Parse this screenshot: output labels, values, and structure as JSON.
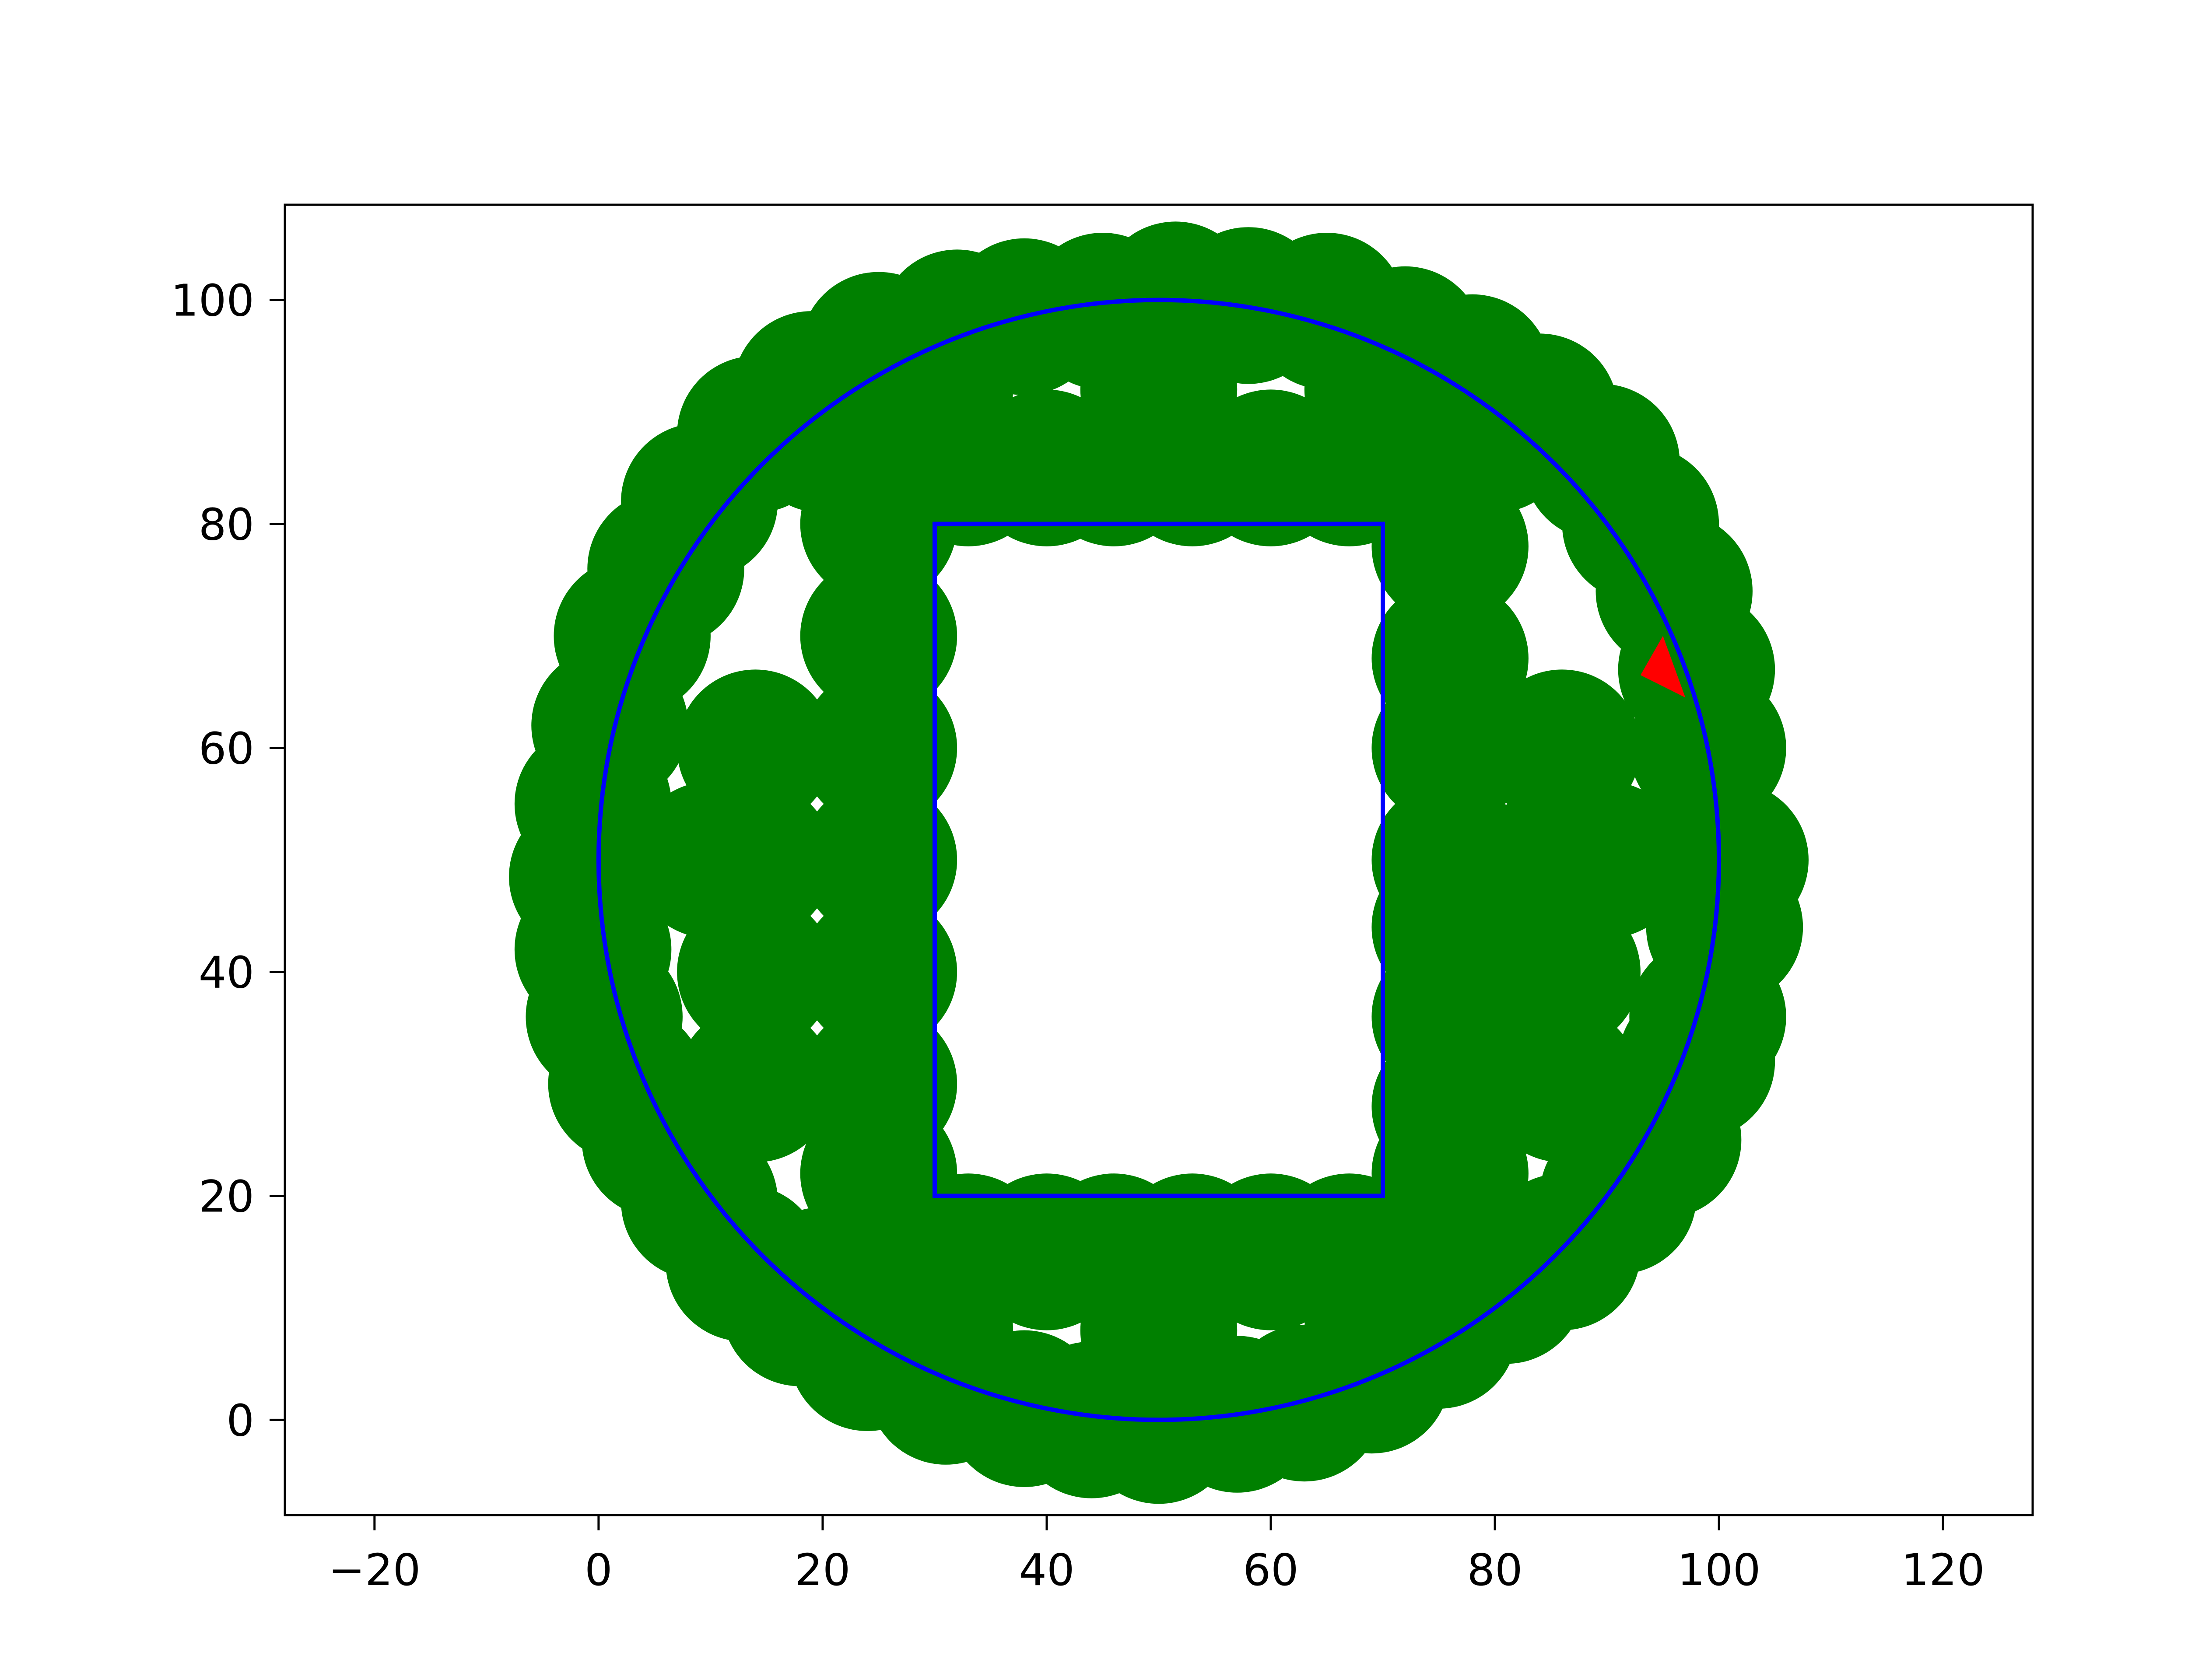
{
  "chart_data": {
    "type": "scatter",
    "title": "",
    "xlabel": "",
    "ylabel": "",
    "xlim": [
      -28,
      128
    ],
    "ylim": [
      -8.5,
      108.5
    ],
    "xticks": [
      -20,
      0,
      20,
      40,
      60,
      80,
      100,
      120
    ],
    "yticks": [
      0,
      20,
      40,
      60,
      80,
      100
    ],
    "xtick_labels": [
      "−20",
      "0",
      "20",
      "40",
      "60",
      "80",
      "100",
      "120"
    ],
    "ytick_labels": [
      "0",
      "20",
      "40",
      "60",
      "80",
      "100"
    ],
    "grid": false,
    "legend": "none",
    "colors": {
      "coverage": "#008000",
      "boundary": "#0000ff",
      "gap": "#ff0000"
    },
    "region": {
      "outer_circle": {
        "center": [
          50,
          50
        ],
        "radius": 50
      },
      "inner_rectangle": {
        "x": [
          30,
          70
        ],
        "y": [
          20,
          80
        ]
      }
    },
    "coverage_disc_radius": 7,
    "coverage_discs": [
      [
        51.5,
        100
      ],
      [
        45,
        99
      ],
      [
        58,
        99.5
      ],
      [
        38,
        98.5
      ],
      [
        65,
        99
      ],
      [
        32,
        97.5
      ],
      [
        72,
        96
      ],
      [
        25,
        95.5
      ],
      [
        78,
        93.5
      ],
      [
        19,
        92
      ],
      [
        84,
        90
      ],
      [
        14,
        88
      ],
      [
        89.5,
        85.5
      ],
      [
        9,
        82
      ],
      [
        93,
        80
      ],
      [
        6,
        76
      ],
      [
        96,
        74
      ],
      [
        3,
        70
      ],
      [
        98,
        67
      ],
      [
        1,
        62
      ],
      [
        99,
        60
      ],
      [
        -0.5,
        55
      ],
      [
        101,
        50
      ],
      [
        -1,
        48.5
      ],
      [
        100.5,
        44
      ],
      [
        -0.5,
        42
      ],
      [
        99,
        36
      ],
      [
        0.5,
        36
      ],
      [
        98,
        32
      ],
      [
        2.5,
        30
      ],
      [
        95,
        25
      ],
      [
        5.5,
        25
      ],
      [
        91,
        20
      ],
      [
        9,
        19.5
      ],
      [
        86,
        15
      ],
      [
        13,
        14
      ],
      [
        81,
        12
      ],
      [
        18,
        10
      ],
      [
        75,
        8
      ],
      [
        24,
        6
      ],
      [
        69,
        4
      ],
      [
        31,
        3
      ],
      [
        63,
        1.5
      ],
      [
        38,
        1
      ],
      [
        57,
        0.5
      ],
      [
        44,
        0
      ],
      [
        50,
        -0.5
      ],
      [
        25,
        80
      ],
      [
        25,
        70
      ],
      [
        25,
        60
      ],
      [
        25,
        50
      ],
      [
        25,
        40
      ],
      [
        25,
        30
      ],
      [
        25,
        22
      ],
      [
        33,
        85
      ],
      [
        40,
        85
      ],
      [
        46,
        85
      ],
      [
        53,
        85
      ],
      [
        60,
        85
      ],
      [
        67,
        85
      ],
      [
        33,
        15
      ],
      [
        40,
        15
      ],
      [
        46,
        15
      ],
      [
        53,
        15
      ],
      [
        60,
        15
      ],
      [
        67,
        15
      ],
      [
        76,
        78
      ],
      [
        76,
        68
      ],
      [
        76,
        60
      ],
      [
        76,
        50
      ],
      [
        76,
        44
      ],
      [
        76,
        36
      ],
      [
        76,
        28
      ],
      [
        76,
        22
      ],
      [
        14,
        60
      ],
      [
        14,
        50
      ],
      [
        14,
        40
      ],
      [
        14,
        30
      ],
      [
        86,
        60
      ],
      [
        86,
        50
      ],
      [
        86,
        40
      ],
      [
        86,
        30
      ],
      [
        50,
        92
      ],
      [
        50,
        8
      ],
      [
        20,
        88
      ],
      [
        80,
        88
      ],
      [
        20,
        12
      ],
      [
        80,
        12
      ],
      [
        30,
        92
      ],
      [
        70,
        92
      ],
      [
        30,
        8
      ],
      [
        70,
        8
      ],
      [
        10,
        50
      ],
      [
        90,
        50
      ]
    ],
    "gap_marks": [
      {
        "shape": "triangle",
        "points": [
          [
            95,
            70
          ],
          [
            97,
            64.5
          ],
          [
            93,
            66.5
          ]
        ]
      }
    ]
  }
}
